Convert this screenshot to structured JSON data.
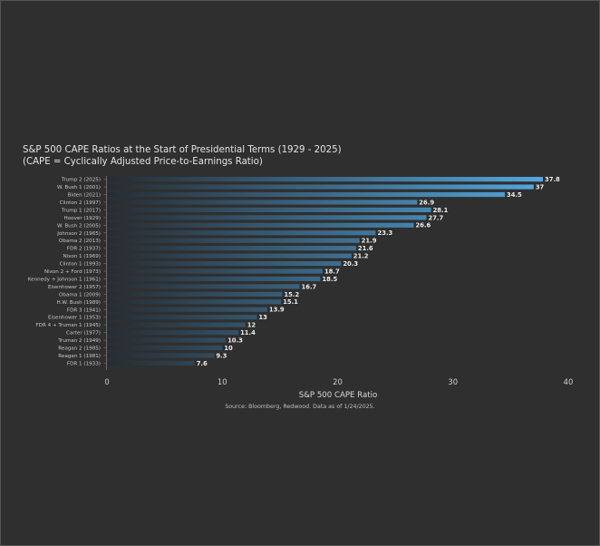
{
  "chart_data": {
    "type": "bar",
    "orientation": "horizontal",
    "title": "S&P 500 CAPE Ratios at the Start of Presidential Terms (1929 - 2025)",
    "subtitle": "(CAPE = Cyclically Adjusted Price-to-Earnings Ratio)",
    "xlabel": "S&P 500 CAPE Ratio",
    "ylabel": "",
    "xlim": [
      0,
      40
    ],
    "xticks": [
      0,
      10,
      20,
      30,
      40
    ],
    "grid": false,
    "source": "Source: Bloomberg, Redwood. Data as of 1/24/2025.",
    "categories": [
      "Trump 2 (2025)",
      "W. Bush 1 (2001)",
      "Biden (2021)",
      "Clinton 2 (1997)",
      "Trump 1 (2017)",
      "Hoover (1929)",
      "W. Bush 2 (2005)",
      "Johnson 2 (1965)",
      "Obama 2 (2013)",
      "FDR 2 (1937)",
      "Nixon 1 (1969)",
      "Clinton 1 (1993)",
      "Nixon 2 + Ford (1973)",
      "Kennedy + Johnson 1 (1961)",
      "Eisenhower 2 (1957)",
      "Obama 1 (2009)",
      "H.W. Bush (1989)",
      "FDR 3 (1941)",
      "Eisenhower 1 (1953)",
      "FDR 4 + Truman 1 (1945)",
      "Carter (1977)",
      "Truman 2 (1949)",
      "Reagan 2 (1985)",
      "Reagan 1 (1981)",
      "FDR 1 (1933)"
    ],
    "values": [
      37.8,
      37,
      34.5,
      26.9,
      28.1,
      27.7,
      26.6,
      23.3,
      21.9,
      21.6,
      21.2,
      20.3,
      18.7,
      18.5,
      16.7,
      15.2,
      15.1,
      13.9,
      13,
      12,
      11.4,
      10.3,
      10,
      9.3,
      7.6
    ],
    "value_labels": [
      "37.8",
      "37",
      "34.5",
      "26.9",
      "28.1",
      "27.7",
      "26.6",
      "23.3",
      "21.9",
      "21.6",
      "21.2",
      "20.3",
      "18.7",
      "18.5",
      "16.7",
      "15.2",
      "15.1",
      "13.9",
      "13",
      "12",
      "11.4",
      "10.3",
      "10",
      "9.3",
      "7.6"
    ],
    "colors": {
      "start": "#56aee6",
      "end": "#262c33",
      "background": "#2f2f2f"
    }
  }
}
